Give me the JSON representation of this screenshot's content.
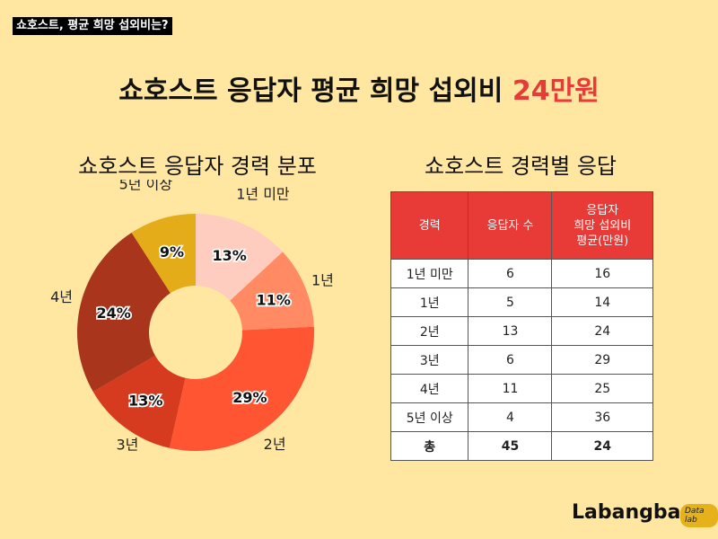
{
  "header": {
    "tag": "쇼호스트, 평균 희망 섭외비는?",
    "title_prefix": "쇼호스트 응답자 평균 희망 섭외비",
    "title_highlight": "24만원"
  },
  "pie_title": "쇼호스트 응답자 경력 분포",
  "table_title": "쇼호스트 경력별 응답",
  "chart_data": [
    {
      "type": "pie",
      "donut": true,
      "title": "쇼호스트 응답자 경력 분포",
      "categories": [
        "1년 미만",
        "1년",
        "2년",
        "3년",
        "4년",
        "5년 이상"
      ],
      "values": [
        13,
        11,
        29,
        13,
        24,
        9
      ],
      "labels": [
        "13%",
        "11%",
        "29%",
        "13%",
        "24%",
        "9%"
      ],
      "colors": [
        "#FFCDBF",
        "#FF8A63",
        "#FF5533",
        "#D63A1F",
        "#A8351C",
        "#E3AC18"
      ]
    },
    {
      "type": "table",
      "title": "쇼호스트 경력별 응답",
      "columns": [
        "경력",
        "응답자 수",
        "응답자\n희망 섭외비\n평균(만원)"
      ],
      "rows": [
        [
          "1년 미만",
          "6",
          "16"
        ],
        [
          "1년",
          "5",
          "14"
        ],
        [
          "2년",
          "13",
          "24"
        ],
        [
          "3년",
          "6",
          "29"
        ],
        [
          "4년",
          "11",
          "25"
        ],
        [
          "5년 이상",
          "4",
          "36"
        ]
      ],
      "total": [
        "총",
        "45",
        "24"
      ]
    }
  ],
  "brand": {
    "name": "Labangba",
    "badge": "Data lab"
  }
}
